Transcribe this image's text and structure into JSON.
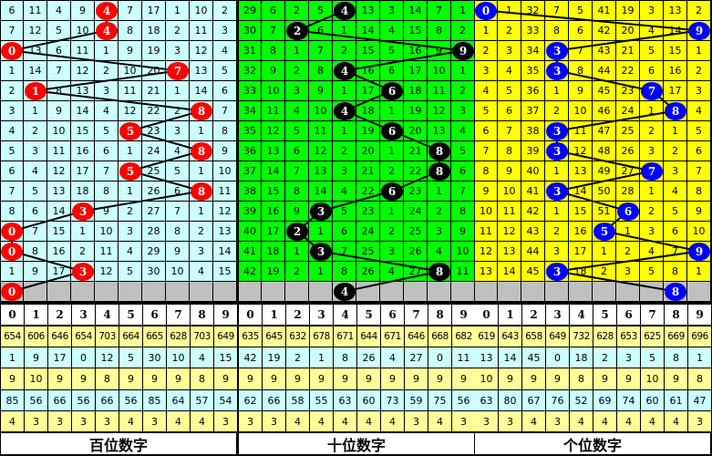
{
  "panels": [
    {
      "title": "百位数字",
      "bg": "#ccffff",
      "ball_color": "#ff0000",
      "rows": [
        [
          6,
          11,
          4,
          9,
          4,
          7,
          17,
          1,
          10,
          2
        ],
        [
          7,
          12,
          5,
          10,
          4,
          8,
          18,
          2,
          11,
          3
        ],
        [
          0,
          13,
          6,
          11,
          1,
          9,
          19,
          3,
          12,
          4
        ],
        [
          1,
          14,
          7,
          12,
          2,
          10,
          20,
          7,
          13,
          5
        ],
        [
          2,
          1,
          8,
          13,
          3,
          11,
          21,
          1,
          14,
          6
        ],
        [
          3,
          1,
          9,
          14,
          4,
          12,
          22,
          2,
          8,
          7
        ],
        [
          4,
          2,
          10,
          15,
          5,
          5,
          23,
          3,
          1,
          8
        ],
        [
          5,
          3,
          11,
          16,
          6,
          1,
          24,
          4,
          8,
          9
        ],
        [
          6,
          4,
          12,
          17,
          7,
          5,
          25,
          5,
          1,
          10
        ],
        [
          7,
          5,
          13,
          18,
          8,
          1,
          26,
          6,
          8,
          11
        ],
        [
          8,
          6,
          14,
          3,
          9,
          2,
          27,
          7,
          1,
          12
        ],
        [
          0,
          7,
          15,
          1,
          10,
          3,
          28,
          8,
          2,
          13
        ],
        [
          0,
          8,
          16,
          2,
          11,
          4,
          29,
          9,
          3,
          14
        ],
        [
          1,
          9,
          17,
          3,
          12,
          5,
          30,
          10,
          4,
          15
        ]
      ],
      "draws": [
        4,
        4,
        0,
        7,
        1,
        8,
        5,
        8,
        5,
        8,
        3,
        0,
        0,
        3,
        0
      ],
      "stats": [
        [
          654,
          606,
          646,
          654,
          703,
          664,
          665,
          628,
          703,
          649
        ],
        [
          1,
          9,
          17,
          0,
          12,
          5,
          30,
          10,
          4,
          15
        ],
        [
          9,
          10,
          9,
          9,
          8,
          9,
          9,
          9,
          8,
          9
        ],
        [
          85,
          56,
          66,
          56,
          66,
          56,
          85,
          64,
          57,
          54
        ],
        [
          4,
          3,
          3,
          3,
          3,
          4,
          3,
          4,
          4,
          3
        ]
      ]
    },
    {
      "title": "十位数字",
      "bg": "#00ff00",
      "ball_color": "#000000",
      "rows": [
        [
          29,
          6,
          2,
          5,
          4,
          13,
          3,
          14,
          7,
          1
        ],
        [
          30,
          7,
          2,
          6,
          1,
          14,
          4,
          15,
          8,
          2
        ],
        [
          31,
          8,
          1,
          7,
          2,
          15,
          5,
          16,
          9,
          9
        ],
        [
          32,
          9,
          2,
          8,
          4,
          16,
          6,
          17,
          10,
          1
        ],
        [
          33,
          10,
          3,
          9,
          1,
          17,
          6,
          18,
          11,
          2
        ],
        [
          34,
          11,
          4,
          10,
          4,
          18,
          1,
          19,
          12,
          3
        ],
        [
          35,
          12,
          5,
          11,
          1,
          19,
          6,
          20,
          13,
          4
        ],
        [
          36,
          13,
          6,
          12,
          2,
          20,
          1,
          21,
          8,
          5
        ],
        [
          37,
          14,
          7,
          13,
          3,
          21,
          2,
          22,
          8,
          6
        ],
        [
          38,
          15,
          8,
          14,
          4,
          22,
          6,
          23,
          1,
          7
        ],
        [
          39,
          16,
          9,
          3,
          5,
          23,
          1,
          24,
          2,
          8
        ],
        [
          40,
          17,
          2,
          1,
          6,
          24,
          2,
          25,
          3,
          9
        ],
        [
          41,
          18,
          1,
          3,
          7,
          25,
          3,
          26,
          4,
          10
        ],
        [
          42,
          19,
          2,
          1,
          8,
          26,
          4,
          27,
          8,
          11
        ]
      ],
      "draws": [
        4,
        2,
        9,
        4,
        6,
        4,
        6,
        8,
        8,
        6,
        3,
        2,
        3,
        8,
        4
      ],
      "stats": [
        [
          635,
          645,
          632,
          678,
          671,
          644,
          671,
          646,
          668,
          682
        ],
        [
          42,
          19,
          2,
          1,
          8,
          26,
          4,
          27,
          0,
          11
        ],
        [
          9,
          9,
          9,
          9,
          9,
          9,
          9,
          9,
          9,
          9
        ],
        [
          62,
          66,
          58,
          55,
          63,
          60,
          73,
          59,
          75,
          56
        ],
        [
          3,
          3,
          4,
          4,
          4,
          4,
          4,
          3,
          4,
          3
        ]
      ]
    },
    {
      "title": "个位数字",
      "bg": "#ffff00",
      "ball_color": "#0000ff",
      "rows": [
        [
          0,
          1,
          32,
          7,
          5,
          41,
          19,
          3,
          13,
          2
        ],
        [
          1,
          2,
          33,
          8,
          6,
          42,
          20,
          4,
          14,
          9
        ],
        [
          2,
          3,
          34,
          3,
          7,
          43,
          21,
          5,
          15,
          1
        ],
        [
          3,
          4,
          35,
          3,
          8,
          44,
          22,
          6,
          16,
          2
        ],
        [
          4,
          5,
          36,
          1,
          9,
          45,
          23,
          7,
          17,
          3
        ],
        [
          5,
          6,
          37,
          2,
          10,
          46,
          24,
          1,
          8,
          4
        ],
        [
          6,
          7,
          38,
          3,
          11,
          47,
          25,
          2,
          1,
          5
        ],
        [
          7,
          8,
          39,
          3,
          12,
          48,
          26,
          3,
          2,
          6
        ],
        [
          8,
          9,
          40,
          1,
          13,
          49,
          27,
          7,
          3,
          7
        ],
        [
          9,
          10,
          41,
          3,
          14,
          50,
          28,
          1,
          4,
          8
        ],
        [
          10,
          11,
          42,
          1,
          15,
          51,
          6,
          2,
          5,
          9
        ],
        [
          11,
          12,
          43,
          2,
          16,
          5,
          1,
          3,
          6,
          10
        ],
        [
          12,
          13,
          44,
          3,
          17,
          1,
          2,
          4,
          7,
          9
        ],
        [
          13,
          14,
          45,
          3,
          18,
          2,
          3,
          5,
          8,
          1
        ]
      ],
      "draws": [
        0,
        9,
        3,
        3,
        7,
        8,
        3,
        3,
        7,
        3,
        6,
        5,
        9,
        3,
        8
      ],
      "stats": [
        [
          619,
          643,
          658,
          649,
          732,
          628,
          653,
          625,
          669,
          696
        ],
        [
          13,
          14,
          45,
          0,
          18,
          2,
          3,
          5,
          8,
          1
        ],
        [
          10,
          9,
          9,
          9,
          8,
          9,
          9,
          10,
          9,
          8
        ],
        [
          63,
          80,
          67,
          76,
          52,
          69,
          74,
          60,
          61,
          47
        ],
        [
          3,
          3,
          4,
          3,
          4,
          4,
          4,
          4,
          4,
          3
        ]
      ]
    }
  ],
  "digits": [
    "0",
    "1",
    "2",
    "3",
    "4",
    "5",
    "6",
    "7",
    "8",
    "9"
  ],
  "colors": {
    "stat_odd": "#ffff99",
    "stat_even": "#ccffff",
    "pending_row": "#c0c0c0"
  }
}
